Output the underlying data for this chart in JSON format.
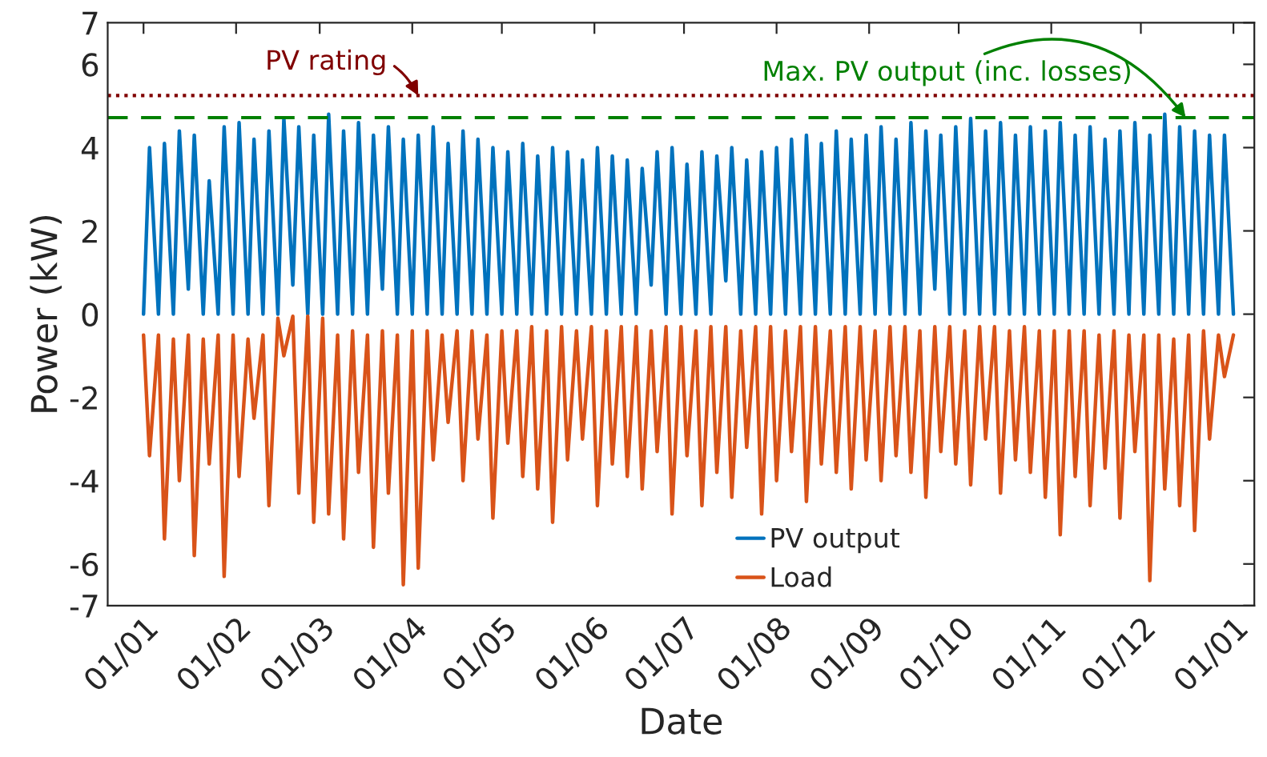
{
  "chart_data": {
    "type": "line",
    "xlabel": "Date",
    "ylabel": "Power (kW)",
    "xlim": [
      "2000-12-20",
      "2002-01-08"
    ],
    "ylim": [
      -7,
      7
    ],
    "xticks": [
      {
        "value": "2001-01-01",
        "label": "01/01"
      },
      {
        "value": "2001-02-01",
        "label": "01/02"
      },
      {
        "value": "2001-03-01",
        "label": "01/03"
      },
      {
        "value": "2001-04-01",
        "label": "01/04"
      },
      {
        "value": "2001-05-01",
        "label": "01/05"
      },
      {
        "value": "2001-06-01",
        "label": "01/06"
      },
      {
        "value": "2001-07-01",
        "label": "01/07"
      },
      {
        "value": "2001-08-01",
        "label": "01/08"
      },
      {
        "value": "2001-09-01",
        "label": "01/09"
      },
      {
        "value": "2001-10-01",
        "label": "01/10"
      },
      {
        "value": "2001-11-01",
        "label": "01/11"
      },
      {
        "value": "2001-12-01",
        "label": "01/12"
      },
      {
        "value": "2002-01-01",
        "label": "01/01"
      }
    ],
    "yticks": [
      -7,
      -6,
      -4,
      -2,
      0,
      2,
      4,
      6,
      7
    ],
    "grid": false,
    "legend": "bottom",
    "marker": "none",
    "line_style": "solid",
    "x": [
      "2001-01-01",
      "2001-01-03",
      "2001-01-06",
      "2001-01-08",
      "2001-01-11",
      "2001-01-13",
      "2001-01-16",
      "2001-01-18",
      "2001-01-21",
      "2001-01-23",
      "2001-01-26",
      "2001-01-28",
      "2001-01-31",
      "2001-02-02",
      "2001-02-05",
      "2001-02-07",
      "2001-02-10",
      "2001-02-12",
      "2001-02-15",
      "2001-02-17",
      "2001-02-20",
      "2001-02-22",
      "2001-02-25",
      "2001-02-27",
      "2001-03-02",
      "2001-03-04",
      "2001-03-07",
      "2001-03-09",
      "2001-03-12",
      "2001-03-14",
      "2001-03-17",
      "2001-03-19",
      "2001-03-22",
      "2001-03-24",
      "2001-03-27",
      "2001-03-29",
      "2001-04-01",
      "2001-04-03",
      "2001-04-06",
      "2001-04-08",
      "2001-04-11",
      "2001-04-13",
      "2001-04-16",
      "2001-04-18",
      "2001-04-21",
      "2001-04-23",
      "2001-04-26",
      "2001-04-28",
      "2001-05-01",
      "2001-05-03",
      "2001-05-06",
      "2001-05-08",
      "2001-05-11",
      "2001-05-13",
      "2001-05-16",
      "2001-05-18",
      "2001-05-21",
      "2001-05-23",
      "2001-05-26",
      "2001-05-28",
      "2001-05-31",
      "2001-06-02",
      "2001-06-05",
      "2001-06-07",
      "2001-06-10",
      "2001-06-12",
      "2001-06-15",
      "2001-06-17",
      "2001-06-20",
      "2001-06-22",
      "2001-06-25",
      "2001-06-27",
      "2001-06-30",
      "2001-07-02",
      "2001-07-05",
      "2001-07-07",
      "2001-07-10",
      "2001-07-12",
      "2001-07-15",
      "2001-07-17",
      "2001-07-20",
      "2001-07-22",
      "2001-07-25",
      "2001-07-27",
      "2001-07-30",
      "2001-08-01",
      "2001-08-04",
      "2001-08-06",
      "2001-08-09",
      "2001-08-11",
      "2001-08-14",
      "2001-08-16",
      "2001-08-19",
      "2001-08-21",
      "2001-08-24",
      "2001-08-26",
      "2001-08-29",
      "2001-08-31",
      "2001-09-03",
      "2001-09-05",
      "2001-09-08",
      "2001-09-10",
      "2001-09-13",
      "2001-09-15",
      "2001-09-18",
      "2001-09-20",
      "2001-09-23",
      "2001-09-25",
      "2001-09-28",
      "2001-09-30",
      "2001-10-03",
      "2001-10-05",
      "2001-10-08",
      "2001-10-10",
      "2001-10-13",
      "2001-10-15",
      "2001-10-18",
      "2001-10-20",
      "2001-10-23",
      "2001-10-25",
      "2001-10-28",
      "2001-10-30",
      "2001-11-02",
      "2001-11-04",
      "2001-11-07",
      "2001-11-09",
      "2001-11-12",
      "2001-11-14",
      "2001-11-17",
      "2001-11-19",
      "2001-11-22",
      "2001-11-24",
      "2001-11-27",
      "2001-11-29",
      "2001-12-02",
      "2001-12-04",
      "2001-12-07",
      "2001-12-09",
      "2001-12-12",
      "2001-12-14",
      "2001-12-17",
      "2001-12-19",
      "2001-12-22",
      "2001-12-24",
      "2001-12-27",
      "2001-12-29",
      "2002-01-01"
    ],
    "series": [
      {
        "name": "PV output",
        "color": "#0072bd",
        "values": [
          0,
          4.0,
          0,
          4.1,
          0,
          4.4,
          0.6,
          4.3,
          0,
          3.2,
          0,
          4.5,
          0,
          4.6,
          0,
          4.2,
          0,
          4.4,
          0,
          4.7,
          0.7,
          4.5,
          0,
          4.3,
          0,
          4.8,
          0,
          4.4,
          0,
          4.6,
          0,
          4.3,
          0.6,
          4.5,
          0,
          4.2,
          0,
          4.3,
          0,
          4.5,
          0,
          4.1,
          0,
          4.4,
          0,
          4.2,
          0,
          4.0,
          0,
          3.9,
          0,
          4.1,
          0,
          3.8,
          0,
          4.0,
          0,
          3.9,
          0,
          3.7,
          0,
          4.0,
          0,
          3.8,
          0,
          3.7,
          0,
          3.5,
          0.7,
          3.9,
          0,
          4.0,
          0,
          3.6,
          0,
          3.9,
          0,
          3.8,
          0.8,
          4.0,
          0,
          3.7,
          0,
          3.9,
          0,
          4.0,
          0,
          4.2,
          0,
          4.3,
          0,
          4.1,
          0,
          4.4,
          0,
          4.2,
          0,
          4.3,
          0,
          4.5,
          0,
          4.2,
          0,
          4.6,
          0,
          4.4,
          0.6,
          4.3,
          0,
          4.5,
          0,
          4.7,
          0,
          4.4,
          0,
          4.6,
          0,
          4.3,
          0,
          4.5,
          0,
          4.4,
          0,
          4.6,
          0,
          4.3,
          0,
          4.5,
          0,
          4.2,
          0,
          4.4,
          0,
          4.6,
          0,
          4.3,
          0,
          4.8,
          0,
          4.5,
          0,
          4.4,
          0,
          4.3,
          0,
          4.3,
          0
        ]
      },
      {
        "name": "Load",
        "color": "#d95319",
        "values": [
          -0.5,
          -3.4,
          -0.5,
          -5.4,
          -0.6,
          -4.0,
          -0.5,
          -5.8,
          -0.6,
          -3.6,
          -0.5,
          -6.3,
          -0.5,
          -3.9,
          -0.6,
          -2.5,
          -0.5,
          -4.6,
          -0.1,
          -1.0,
          -0.05,
          -4.3,
          -0.05,
          -5.0,
          -0.1,
          -4.8,
          -0.5,
          -5.4,
          -0.4,
          -3.8,
          -0.5,
          -5.6,
          -0.4,
          -4.3,
          -0.5,
          -6.5,
          -0.4,
          -6.1,
          -0.4,
          -3.5,
          -0.5,
          -2.6,
          -0.4,
          -4.0,
          -0.4,
          -3.0,
          -0.5,
          -4.9,
          -0.4,
          -3.1,
          -0.4,
          -3.9,
          -0.3,
          -4.2,
          -0.4,
          -5.0,
          -0.3,
          -3.5,
          -0.4,
          -3.0,
          -0.3,
          -4.6,
          -0.4,
          -3.6,
          -0.3,
          -3.9,
          -0.3,
          -4.2,
          -0.4,
          -3.3,
          -0.3,
          -4.8,
          -0.3,
          -3.4,
          -0.4,
          -4.6,
          -0.3,
          -3.8,
          -0.3,
          -4.4,
          -0.4,
          -3.2,
          -0.3,
          -4.8,
          -0.3,
          -4.0,
          -0.4,
          -3.3,
          -0.3,
          -4.5,
          -0.3,
          -3.6,
          -0.4,
          -3.8,
          -0.3,
          -4.2,
          -0.3,
          -3.5,
          -0.4,
          -4.0,
          -0.3,
          -3.4,
          -0.3,
          -3.8,
          -0.4,
          -4.4,
          -0.3,
          -3.3,
          -0.3,
          -3.6,
          -0.4,
          -4.1,
          -0.3,
          -3.0,
          -0.3,
          -4.3,
          -0.4,
          -3.5,
          -0.3,
          -3.8,
          -0.4,
          -4.4,
          -0.4,
          -5.3,
          -0.4,
          -3.9,
          -0.4,
          -4.6,
          -0.5,
          -3.7,
          -0.4,
          -4.9,
          -0.5,
          -3.3,
          -0.5,
          -6.4,
          -0.5,
          -4.2,
          -0.6,
          -4.6,
          -0.5,
          -5.2,
          -0.4,
          -3.0,
          -0.5,
          -1.5,
          -0.5
        ]
      }
    ],
    "ref_lines": [
      {
        "axis": "y",
        "value": 5.25,
        "color": "#800000",
        "line_style": "dotted"
      },
      {
        "axis": "y",
        "value": 4.72,
        "color": "#008000",
        "line_style": "dashed"
      }
    ],
    "annotations": [
      {
        "text": "PV rating",
        "x": "2001-04-03",
        "y": 5.25
      },
      {
        "text": "Max. PV output (inc. losses)",
        "x": "2001-12-16",
        "y": 4.72
      }
    ]
  }
}
